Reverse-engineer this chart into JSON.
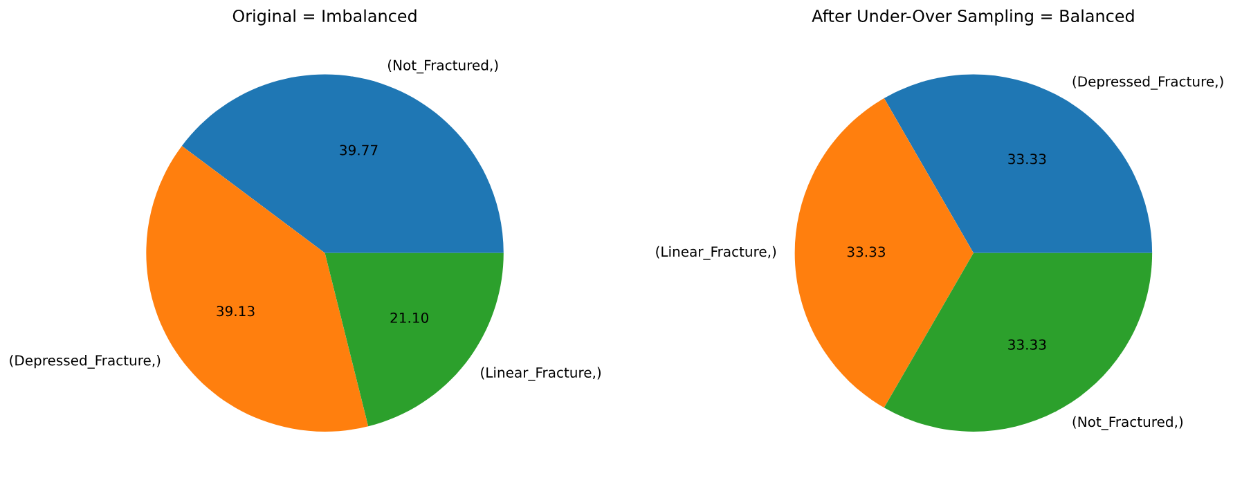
{
  "chart_data": [
    {
      "type": "pie",
      "title": "Original = Imbalanced",
      "categories": [
        "(Not_Fractured,)",
        "(Depressed_Fracture,)",
        "(Linear_Fracture,)"
      ],
      "values": [
        39.77,
        39.13,
        21.1
      ],
      "value_labels": [
        "39.77",
        "39.13",
        "21.10"
      ],
      "colors": [
        "#1f77b4",
        "#ff7f0e",
        "#2ca02c"
      ]
    },
    {
      "type": "pie",
      "title": "After Under-Over Sampling = Balanced",
      "categories": [
        "(Depressed_Fracture,)",
        "(Linear_Fracture,)",
        "(Not_Fractured,)"
      ],
      "values": [
        33.33,
        33.33,
        33.33
      ],
      "value_labels": [
        "33.33",
        "33.33",
        "33.33"
      ],
      "colors": [
        "#1f77b4",
        "#ff7f0e",
        "#2ca02c"
      ]
    }
  ]
}
